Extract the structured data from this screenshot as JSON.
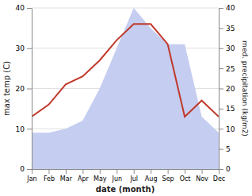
{
  "chart_data": {
    "type": "line",
    "categories": [
      "Jan",
      "Feb",
      "Mar",
      "Apr",
      "May",
      "Jun",
      "Jul",
      "Aug",
      "Sep",
      "Oct",
      "Nov",
      "Dec"
    ],
    "series": [
      {
        "type": "area",
        "axis": "y2",
        "color": "#c5cdf0",
        "values": [
          9,
          9,
          10,
          12,
          20,
          30,
          40,
          35,
          31,
          31,
          13,
          9
        ]
      },
      {
        "type": "line",
        "color": "#c0392b",
        "values": [
          13,
          16,
          21,
          23,
          27,
          32,
          36,
          36,
          31,
          13,
          17,
          13
        ]
      }
    ],
    "xlabel": "date (month)",
    "ylabel": "max temp (C)",
    "y2label": "med. precipitation (kg/m2)",
    "ylim": [
      0,
      40
    ],
    "yticks": [
      0,
      10,
      20,
      30,
      40
    ],
    "y2lim": [
      0,
      40
    ],
    "y2ticks": [
      0,
      5,
      10,
      15,
      20,
      25,
      30,
      35,
      40
    ],
    "grid": true
  }
}
